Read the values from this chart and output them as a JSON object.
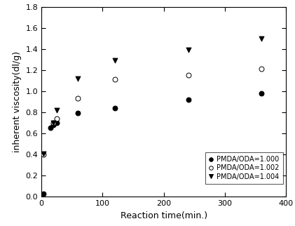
{
  "series": [
    {
      "label": "PMDA/ODA=1.000",
      "marker": "filled_circle",
      "x": [
        3,
        15,
        20,
        25,
        60,
        120,
        240,
        360
      ],
      "y": [
        0.03,
        0.65,
        0.68,
        0.7,
        0.79,
        0.84,
        0.92,
        0.98
      ]
    },
    {
      "label": "PMDA/ODA=1.002",
      "marker": "open_circle",
      "x": [
        3,
        20,
        25,
        60,
        120,
        240,
        360
      ],
      "y": [
        0.4,
        0.7,
        0.74,
        0.93,
        1.11,
        1.15,
        1.21
      ]
    },
    {
      "label": "PMDA/ODA=1.004",
      "marker": "filled_triangle_down",
      "x": [
        3,
        20,
        25,
        60,
        120,
        240,
        360
      ],
      "y": [
        0.41,
        0.7,
        0.82,
        1.12,
        1.29,
        1.39,
        1.5
      ]
    }
  ],
  "xlabel": "Reaction time(min.)",
  "ylabel": "inherent viscosity(dl/g)",
  "xlim": [
    0,
    400
  ],
  "ylim": [
    0.0,
    1.8
  ],
  "xticks": [
    0,
    100,
    200,
    300,
    400
  ],
  "yticks": [
    0.0,
    0.2,
    0.4,
    0.6,
    0.8,
    1.0,
    1.2,
    1.4,
    1.6,
    1.8
  ],
  "figsize": [
    4.21,
    3.22
  ],
  "dpi": 100,
  "marker_size": 5,
  "xlabel_fontsize": 9,
  "ylabel_fontsize": 9,
  "tick_fontsize": 8,
  "legend_fontsize": 7
}
